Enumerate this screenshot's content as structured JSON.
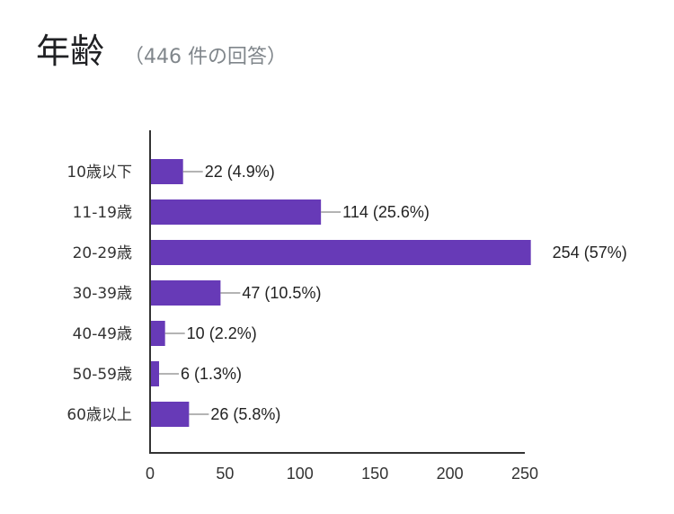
{
  "header": {
    "title": "年齢",
    "subtitle": "（446 件の回答）"
  },
  "chart_data": {
    "type": "bar",
    "orientation": "horizontal",
    "categories": [
      "10歳以下",
      "11-19歳",
      "20-29歳",
      "30-39歳",
      "40-49歳",
      "50-59歳",
      "60歳以上"
    ],
    "values": [
      22,
      114,
      254,
      47,
      10,
      6,
      26
    ],
    "data_labels": [
      "22 (4.9%)",
      "114 (25.6%)",
      "254 (57%)",
      "47 (10.5%)",
      "10 (2.2%)",
      "6 (1.3%)",
      "26 (5.8%)"
    ],
    "xlim": [
      0,
      250
    ],
    "xticks": [
      "0",
      "50",
      "100",
      "150",
      "200",
      "250"
    ],
    "bar_color": "#673ab7",
    "grid": false,
    "legend": "none"
  }
}
